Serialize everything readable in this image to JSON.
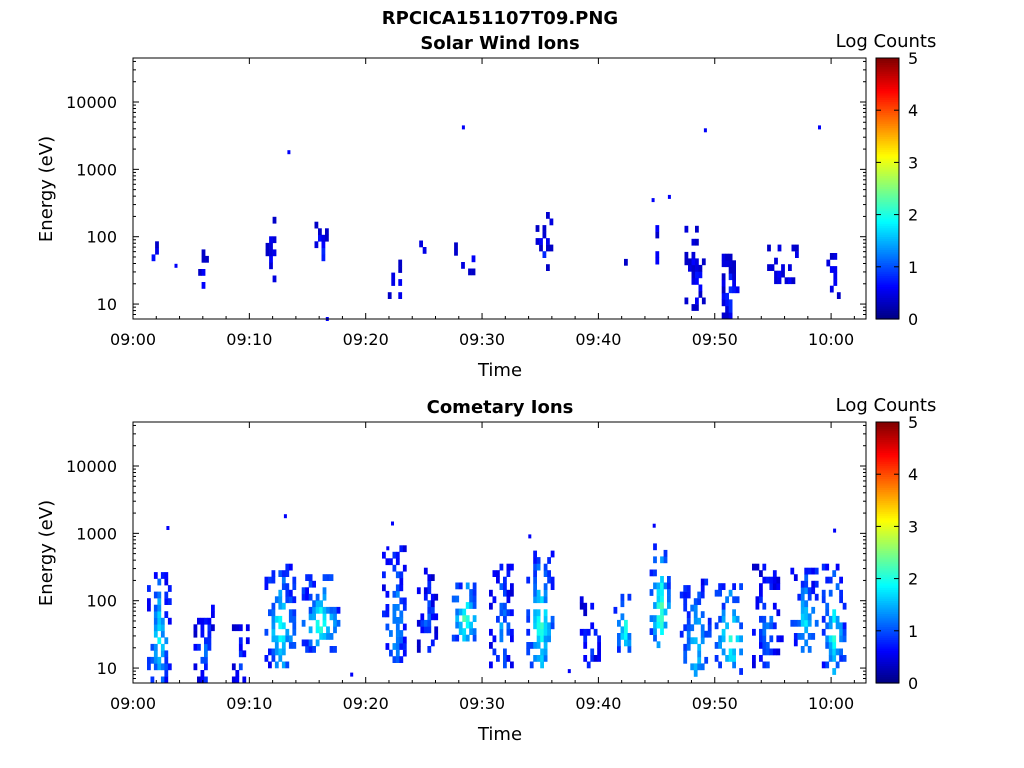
{
  "figure_title": "RPCICA151107T09.PNG",
  "chart_data": [
    {
      "type": "heatmap",
      "title": "Solar Wind Ions",
      "xlabel": "Time",
      "ylabel": "Energy (eV)",
      "xticks": [
        "09:00",
        "09:10",
        "09:20",
        "09:30",
        "09:40",
        "09:50",
        "10:00"
      ],
      "xlim_minutes": [
        0,
        63
      ],
      "yscale": "log",
      "ylim": [
        6,
        45000
      ],
      "yticks": [
        10,
        100,
        1000,
        10000
      ],
      "yticklabels": [
        "10",
        "100",
        "1000",
        "10000"
      ],
      "colorbar": {
        "label": "Log Counts",
        "range": [
          0,
          5
        ],
        "ticks": [
          "0",
          "1",
          "2",
          "3",
          "4",
          "5"
        ]
      },
      "clusters": [
        {
          "t": [
            1.3,
            2.1
          ],
          "e": [
            35,
            100
          ],
          "level": 0.6,
          "density": 0.45
        },
        {
          "t": [
            5.6,
            6.3
          ],
          "e": [
            17,
            55
          ],
          "level": 0.6,
          "density": 0.5
        },
        {
          "t": [
            11.4,
            12.3
          ],
          "e": [
            17,
            200
          ],
          "level": 0.6,
          "density": 0.35
        },
        {
          "t": [
            15.6,
            16.6
          ],
          "e": [
            35,
            150
          ],
          "level": 0.7,
          "density": 0.55
        },
        {
          "t": [
            21.6,
            23.3
          ],
          "e": [
            12,
            40
          ],
          "level": 0.6,
          "density": 0.25
        },
        {
          "t": [
            24.6,
            25.0
          ],
          "e": [
            45,
            220
          ],
          "level": 0.6,
          "density": 0.35
        },
        {
          "t": [
            27.6,
            29.4
          ],
          "e": [
            27,
            80
          ],
          "level": 0.6,
          "density": 0.4
        },
        {
          "t": [
            31.4,
            32.0
          ],
          "e": [
            200,
            260
          ],
          "level": 0.6,
          "density": 0.4
        },
        {
          "t": [
            34.6,
            35.8
          ],
          "e": [
            25,
            200
          ],
          "level": 0.6,
          "density": 0.35
        },
        {
          "t": [
            42.2,
            42.7
          ],
          "e": [
            30,
            45
          ],
          "level": 0.6,
          "density": 0.8
        },
        {
          "t": [
            44.6,
            45.3
          ],
          "e": [
            25,
            140
          ],
          "level": 0.7,
          "density": 0.55
        },
        {
          "t": [
            47.4,
            49.0
          ],
          "e": [
            8,
            120
          ],
          "level": 0.6,
          "density": 0.45
        },
        {
          "t": [
            50.3,
            52.0
          ],
          "e": [
            6,
            45
          ],
          "level": 0.7,
          "density": 0.55
        },
        {
          "t": [
            54.5,
            57.5
          ],
          "e": [
            20,
            80
          ],
          "level": 0.6,
          "density": 0.35
        },
        {
          "t": [
            59.6,
            60.6
          ],
          "e": [
            12,
            70
          ],
          "level": 0.6,
          "density": 0.45
        }
      ],
      "points": [
        {
          "t": 13.4,
          "e": 1800
        },
        {
          "t": 28.4,
          "e": 4200
        },
        {
          "t": 49.2,
          "e": 3800
        },
        {
          "t": 59.0,
          "e": 4200
        },
        {
          "t": 44.7,
          "e": 350
        },
        {
          "t": 46.1,
          "e": 390
        },
        {
          "t": 16.7,
          "e": 6
        },
        {
          "t": 3.7,
          "e": 37
        }
      ]
    },
    {
      "type": "heatmap",
      "title": "Cometary Ions",
      "xlabel": "Time",
      "ylabel": "Energy (eV)",
      "xticks": [
        "09:00",
        "09:10",
        "09:20",
        "09:30",
        "09:40",
        "09:50",
        "10:00"
      ],
      "xlim_minutes": [
        0,
        63
      ],
      "yscale": "log",
      "ylim": [
        6,
        45000
      ],
      "yticks": [
        10,
        100,
        1000,
        10000
      ],
      "yticklabels": [
        "10",
        "100",
        "1000",
        "10000"
      ],
      "colorbar": {
        "label": "Log Counts",
        "range": [
          0,
          5
        ],
        "ticks": [
          "0",
          "1",
          "2",
          "3",
          "4",
          "5"
        ]
      },
      "clusters": [
        {
          "t": [
            1.2,
            3.0
          ],
          "e": [
            6,
            250
          ],
          "level": 1.6,
          "density": 0.55
        },
        {
          "t": [
            5.2,
            6.8
          ],
          "e": [
            6,
            120
          ],
          "level": 1.0,
          "density": 0.5
        },
        {
          "t": [
            8.5,
            9.8
          ],
          "e": [
            6,
            40
          ],
          "level": 0.8,
          "density": 0.45
        },
        {
          "t": [
            11.3,
            13.8
          ],
          "e": [
            10,
            300
          ],
          "level": 1.7,
          "density": 0.6
        },
        {
          "t": [
            14.5,
            17.6
          ],
          "e": [
            17,
            200
          ],
          "level": 1.8,
          "density": 0.55
        },
        {
          "t": [
            21.4,
            23.4
          ],
          "e": [
            12,
            600
          ],
          "level": 1.3,
          "density": 0.5
        },
        {
          "t": [
            24.4,
            26.0
          ],
          "e": [
            17,
            250
          ],
          "level": 1.0,
          "density": 0.55
        },
        {
          "t": [
            27.4,
            29.5
          ],
          "e": [
            25,
            180
          ],
          "level": 2.0,
          "density": 0.65
        },
        {
          "t": [
            30.6,
            32.5
          ],
          "e": [
            10,
            350
          ],
          "level": 1.2,
          "density": 0.55
        },
        {
          "t": [
            33.8,
            36.0
          ],
          "e": [
            10,
            500
          ],
          "level": 1.8,
          "density": 0.6
        },
        {
          "t": [
            38.4,
            40.0
          ],
          "e": [
            10,
            100
          ],
          "level": 0.9,
          "density": 0.4
        },
        {
          "t": [
            41.3,
            43.0
          ],
          "e": [
            17,
            150
          ],
          "level": 1.7,
          "density": 0.5
        },
        {
          "t": [
            44.4,
            46.0
          ],
          "e": [
            20,
            600
          ],
          "level": 2.0,
          "density": 0.6
        },
        {
          "t": [
            47.0,
            49.5
          ],
          "e": [
            6,
            200
          ],
          "level": 1.5,
          "density": 0.55
        },
        {
          "t": [
            50.0,
            52.3
          ],
          "e": [
            8,
            150
          ],
          "level": 1.9,
          "density": 0.6
        },
        {
          "t": [
            53.2,
            55.6
          ],
          "e": [
            10,
            300
          ],
          "level": 1.1,
          "density": 0.5
        },
        {
          "t": [
            56.5,
            58.8
          ],
          "e": [
            17,
            250
          ],
          "level": 1.5,
          "density": 0.55
        },
        {
          "t": [
            59.2,
            61.0
          ],
          "e": [
            8,
            300
          ],
          "level": 1.7,
          "density": 0.55
        }
      ],
      "points": [
        {
          "t": 3.0,
          "e": 1200
        },
        {
          "t": 13.1,
          "e": 1800
        },
        {
          "t": 22.3,
          "e": 1400
        },
        {
          "t": 34.1,
          "e": 900
        },
        {
          "t": 44.8,
          "e": 1300
        },
        {
          "t": 60.3,
          "e": 1100
        },
        {
          "t": 18.8,
          "e": 8
        },
        {
          "t": 21.9,
          "e": 600
        },
        {
          "t": 37.5,
          "e": 9
        }
      ]
    }
  ]
}
